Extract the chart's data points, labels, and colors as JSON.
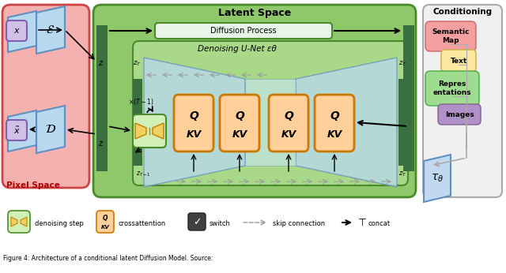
{
  "title": "Latent Space",
  "pixel_space_label": "Pixel Space",
  "conditioning_label": "Conditioning",
  "diffusion_process_label": "Diffusion Process",
  "denoising_unet_label": "Denoising U-Net εθ",
  "pixel_space_bg": "#f5b0b0",
  "pixel_space_edge": "#cc4444",
  "latent_space_bg": "#8ec86a",
  "latent_space_edge": "#4a8a2a",
  "unet_bg": "#a8d888",
  "unet_edge": "#4a8a2a",
  "unet_inner_bg": "#c8e8f8",
  "conditioning_bg": "#f0f0f0",
  "conditioning_edge": "#aaaaaa",
  "green_bar_color": "#3a7040",
  "qkv_bg": "#ffd09a",
  "qkv_border": "#cc7700",
  "blue_shape_color": "#b8d8f0",
  "blue_shape_edge": "#6090c0",
  "x_box_bg": "#d0c0e8",
  "x_box_edge": "#8060b0",
  "denoising_box_bg": "#d0f0b8",
  "denoising_box_edge": "#4a8a2a",
  "tau_box_bg": "#c0d8f0",
  "tau_box_edge": "#6090c0",
  "legend_items": [
    "denoising step",
    "crossattention",
    "switch",
    "skip connection",
    "concat"
  ],
  "caption": "Figure 4: Architecture of a conditional latent Diffusion Model. Source:"
}
